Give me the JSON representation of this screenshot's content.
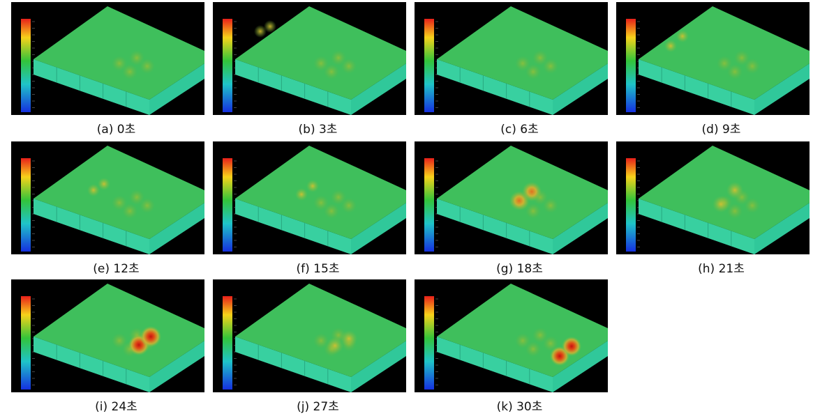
{
  "panels": [
    {
      "caption": "(a) 0초"
    },
    {
      "caption": "(b) 3초"
    },
    {
      "caption": "(c) 6초"
    },
    {
      "caption": "(d) 9초"
    },
    {
      "caption": "(e) 12초"
    },
    {
      "caption": "(f) 15초"
    },
    {
      "caption": "(g) 18초"
    },
    {
      "caption": "(h) 21초"
    },
    {
      "caption": "(i) 24초"
    },
    {
      "caption": "(j) 27초"
    },
    {
      "caption": "(k) 30초"
    }
  ]
}
